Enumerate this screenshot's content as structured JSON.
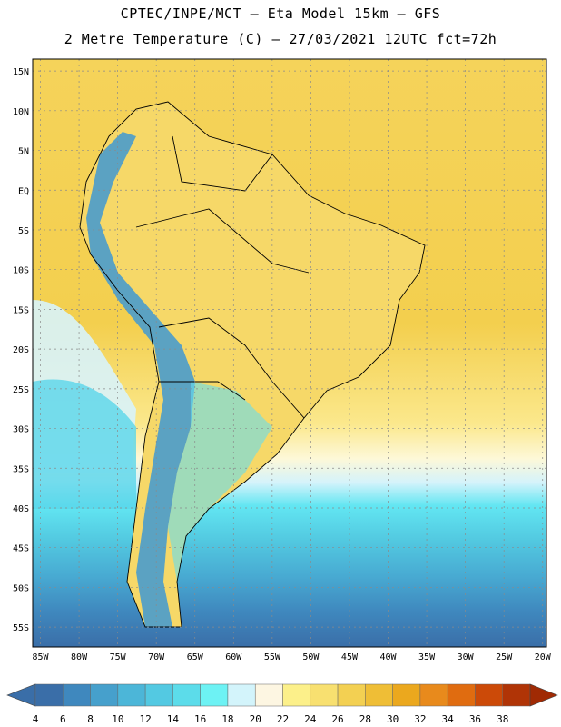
{
  "header": {
    "line1": "CPTEC/INPE/MCT –  Eta Model 15km – GFS",
    "line2": "2 Metre Temperature (C) – 27/03/2021 12UTC fct=72h"
  },
  "map": {
    "lat_labels": [
      "15N",
      "10N",
      "5N",
      "EQ",
      "5S",
      "10S",
      "15S",
      "20S",
      "25S",
      "30S",
      "35S",
      "40S",
      "45S",
      "50S",
      "55S"
    ],
    "lon_labels": [
      "85W",
      "80W",
      "75W",
      "70W",
      "65W",
      "60W",
      "55W",
      "50W",
      "45W",
      "40W",
      "35W",
      "30W",
      "25W",
      "20W"
    ],
    "lat_values": [
      15,
      10,
      5,
      0,
      -5,
      -10,
      -15,
      -20,
      -25,
      -30,
      -35,
      -40,
      -45,
      -50,
      -55
    ],
    "lon_values": [
      -85,
      -80,
      -75,
      -70,
      -65,
      -60,
      -55,
      -50,
      -45,
      -40,
      -35,
      -30,
      -25,
      -20
    ],
    "extent": {
      "lon_min": -86,
      "lon_max": -19.5,
      "lat_min": -57.5,
      "lat_max": 16.5
    },
    "grid": true
  },
  "colorbar": {
    "labels": [
      "4",
      "6",
      "8",
      "10",
      "12",
      "14",
      "16",
      "18",
      "20",
      "22",
      "24",
      "26",
      "28",
      "30",
      "32",
      "34",
      "36",
      "38"
    ],
    "colors": [
      "#3a6ea8",
      "#3f88be",
      "#46a0cc",
      "#4cb6d8",
      "#53c9e2",
      "#5cdcea",
      "#6df2f4",
      "#d3f4fb",
      "#fdf6e2",
      "#fcf08a",
      "#f8e070",
      "#f3d052",
      "#efbe36",
      "#eba81e",
      "#e88a1c",
      "#e06c10",
      "#cc4a08",
      "#b03406"
    ],
    "low_color": "#3a6ea8",
    "high_color": "#a02a04"
  }
}
